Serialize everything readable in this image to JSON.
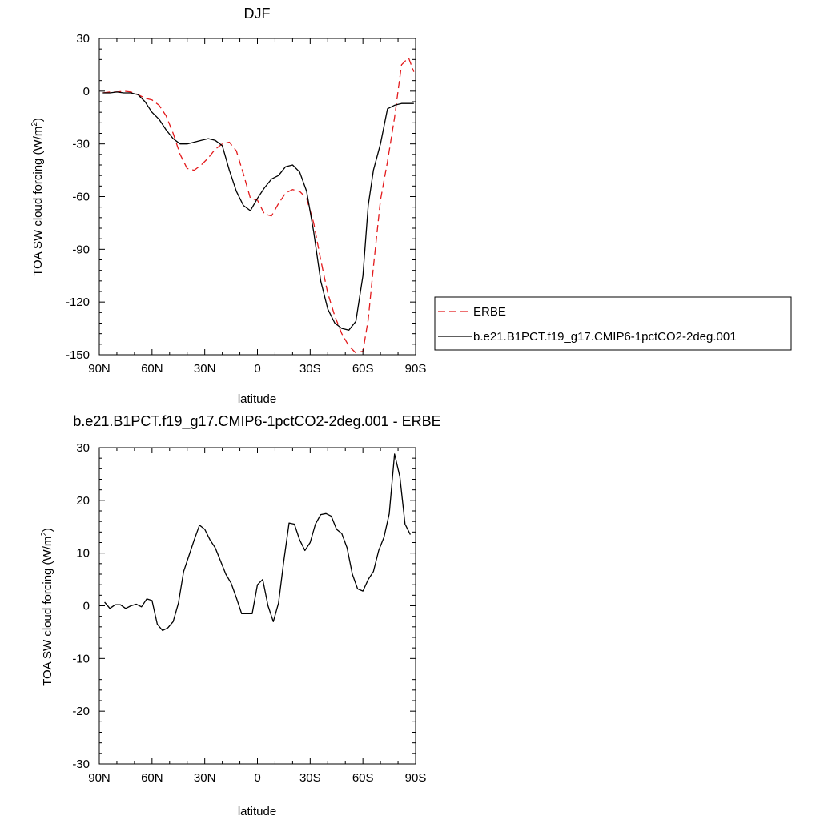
{
  "chart_data": [
    {
      "type": "line",
      "title": "DJF",
      "xlabel": "latitude",
      "ylabel": "TOA SW cloud forcing (W/m",
      "ylabel_sup": "2",
      "ylabel_end": ")",
      "xlim": [
        -90,
        90
      ],
      "ylim": [
        -150,
        30
      ],
      "x_ticks": [
        -90,
        -60,
        -30,
        0,
        30,
        60,
        90
      ],
      "x_tick_labels": [
        "90N",
        "60N",
        "30N",
        "0",
        "30S",
        "60S",
        "90S"
      ],
      "y_ticks": [
        -150,
        -120,
        -90,
        -60,
        -30,
        0,
        30
      ],
      "y_tick_labels": [
        "-150",
        "-120",
        "-90",
        "-60",
        "-30",
        "0",
        "30"
      ],
      "legend_position": "right",
      "series": [
        {
          "name": "ERBE",
          "color": "#e31a1c",
          "dash": "dashed",
          "x": [
            -88,
            -84,
            -80,
            -76,
            -72,
            -68,
            -64,
            -60,
            -56,
            -52,
            -48,
            -44,
            -40,
            -36,
            -32,
            -28,
            -24,
            -20,
            -16,
            -12,
            -8,
            -4,
            0,
            4,
            8,
            12,
            16,
            20,
            24,
            28,
            32,
            36,
            40,
            44,
            48,
            52,
            56,
            60,
            63,
            66,
            70,
            74,
            78,
            82,
            86,
            89
          ],
          "y": [
            -1,
            -0.5,
            -0.5,
            0,
            -0.5,
            -2,
            -4,
            -5,
            -8,
            -14,
            -24,
            -36,
            -44,
            -45,
            -42,
            -38,
            -33,
            -30,
            -29,
            -34,
            -47,
            -61,
            -62,
            -70,
            -71,
            -64,
            -58,
            -56,
            -57,
            -61,
            -75,
            -96,
            -115,
            -128,
            -138,
            -145,
            -149,
            -148,
            -130,
            -100,
            -62,
            -40,
            -15,
            15,
            19,
            11
          ]
        },
        {
          "name": "b.e21.B1PCT.f19_g17.CMIP6-1pctCO2-2deg.001",
          "color": "#000000",
          "dash": "solid",
          "x": [
            -88,
            -84,
            -80,
            -76,
            -72,
            -68,
            -64,
            -60,
            -56,
            -52,
            -48,
            -44,
            -40,
            -36,
            -32,
            -28,
            -24,
            -20,
            -16,
            -12,
            -8,
            -4,
            0,
            4,
            8,
            12,
            16,
            20,
            24,
            28,
            32,
            36,
            40,
            44,
            48,
            52,
            56,
            60,
            63,
            66,
            70,
            74,
            78,
            82,
            86,
            89
          ],
          "y": [
            -1,
            -1,
            -0.5,
            -1,
            -1,
            -2,
            -6,
            -12,
            -16,
            -22,
            -27,
            -30,
            -30,
            -29,
            -28,
            -27,
            -28,
            -31,
            -45,
            -57,
            -65,
            -68,
            -61,
            -55,
            -50,
            -48,
            -43,
            -42,
            -46,
            -57,
            -80,
            -108,
            -124,
            -132,
            -135,
            -136,
            -131,
            -105,
            -65,
            -45,
            -30,
            -10,
            -8,
            -7,
            -7,
            -7
          ]
        }
      ]
    },
    {
      "type": "line",
      "title": "b.e21.B1PCT.f19_g17.CMIP6-1pctCO2-2deg.001 - ERBE",
      "xlabel": "latitude",
      "ylabel": "TOA SW cloud forcing (W/m",
      "ylabel_sup": "2",
      "ylabel_end": ")",
      "xlim": [
        -90,
        90
      ],
      "ylim": [
        -30,
        30
      ],
      "x_ticks": [
        -90,
        -60,
        -30,
        0,
        30,
        60,
        90
      ],
      "x_tick_labels": [
        "90N",
        "60N",
        "30N",
        "0",
        "30S",
        "60S",
        "90S"
      ],
      "y_ticks": [
        -30,
        -20,
        -10,
        0,
        10,
        20,
        30
      ],
      "y_tick_labels": [
        "-30",
        "-20",
        "-10",
        "0",
        "10",
        "20",
        "30"
      ],
      "series": [
        {
          "color": "#000000",
          "dash": "solid",
          "x": [
            -87,
            -84,
            -81,
            -78,
            -75,
            -72,
            -69,
            -66,
            -63,
            -60,
            -57,
            -54,
            -51,
            -48,
            -45,
            -42,
            -39,
            -36,
            -33,
            -30,
            -27,
            -24,
            -21,
            -18,
            -15,
            -12,
            -9,
            -6,
            -3,
            0,
            3,
            6,
            9,
            12,
            15,
            18,
            21,
            24,
            27,
            30,
            33,
            36,
            39,
            42,
            45,
            48,
            51,
            54,
            57,
            60,
            63,
            66,
            69,
            72,
            75,
            78,
            81,
            84,
            87
          ],
          "y": [
            0.7,
            -0.5,
            0.2,
            0.2,
            -0.5,
            0,
            0.3,
            -0.2,
            1.3,
            1,
            -3.5,
            -4.7,
            -4.2,
            -3,
            0.5,
            6.5,
            9.5,
            12.5,
            15.3,
            14.5,
            12.5,
            11,
            8.5,
            6,
            4.3,
            1.5,
            -1.5,
            -1.5,
            -1.5,
            4,
            5,
            0,
            -3,
            0.5,
            8.5,
            15.7,
            15.5,
            12.5,
            10.5,
            12,
            15.5,
            17.3,
            17.5,
            17,
            14.5,
            13.7,
            11,
            6,
            3.2,
            2.8,
            5,
            6.5,
            10.5,
            13,
            17.5,
            28.8,
            24.5,
            15.5,
            13.5
          ]
        }
      ]
    }
  ]
}
